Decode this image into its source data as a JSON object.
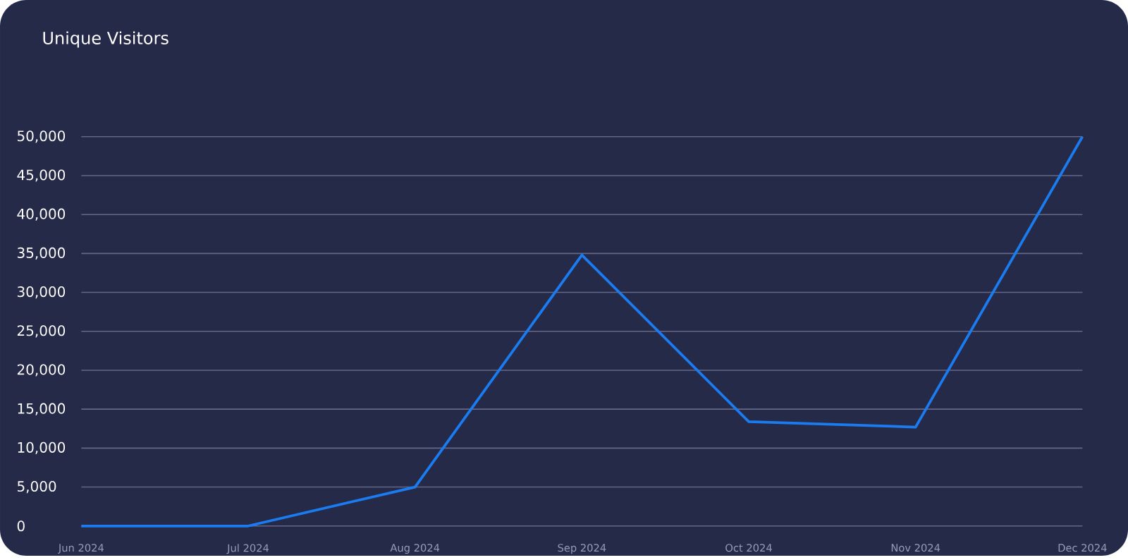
{
  "chart_data": {
    "type": "line",
    "title": "Unique Visitors",
    "categories": [
      "Jun 2024",
      "Jul 2024",
      "Aug 2024",
      "Sep 2024",
      "Oct 2024",
      "Nov 2024",
      "Dec 2024"
    ],
    "series": [
      {
        "color": "#1a7cf0",
        "values": [
          0,
          0,
          5000,
          34800,
          13400,
          12700,
          50000
        ]
      }
    ],
    "ylim": [
      0,
      50000
    ],
    "yticks": [
      {
        "value": 0,
        "label": "0"
      },
      {
        "value": 5000,
        "label": "5,000"
      },
      {
        "value": 10000,
        "label": "10,000"
      },
      {
        "value": 15000,
        "label": "15,000"
      },
      {
        "value": 20000,
        "label": "20,000"
      },
      {
        "value": 25000,
        "label": "25,000"
      },
      {
        "value": 30000,
        "label": "30,000"
      },
      {
        "value": 35000,
        "label": "35,000"
      },
      {
        "value": 40000,
        "label": "40,000"
      },
      {
        "value": 45000,
        "label": "45,000"
      },
      {
        "value": 50000,
        "label": "50,000"
      }
    ],
    "grid": "y",
    "marker": "none",
    "line_style": "solid"
  }
}
